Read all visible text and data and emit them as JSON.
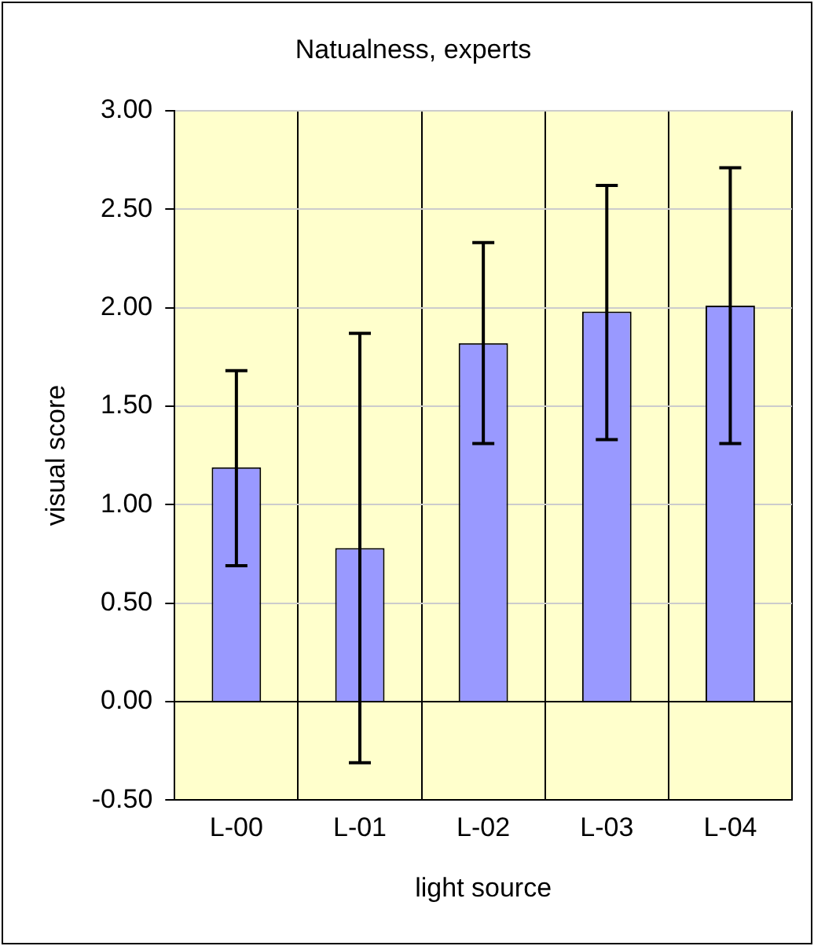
{
  "chart_data": {
    "type": "bar",
    "title": "Natualness, experts",
    "xlabel": "light source",
    "ylabel": "visual score",
    "categories": [
      "L-00",
      "L-01",
      "L-02",
      "L-03",
      "L-04"
    ],
    "series": [
      {
        "color": "#9999ff",
        "values": [
          1.19,
          0.78,
          1.82,
          1.98,
          2.01
        ],
        "errors": [
          [
            0.69,
            1.68
          ],
          [
            -0.31,
            1.87
          ],
          [
            1.31,
            2.33
          ],
          [
            1.33,
            2.62
          ],
          [
            1.31,
            2.71
          ]
        ]
      }
    ],
    "ylim": [
      -0.5,
      3
    ],
    "yticks": [
      {
        "value": -0.5,
        "label": "-0.50"
      },
      {
        "value": 0,
        "label": "0.00"
      },
      {
        "value": 0.5,
        "label": "0.50"
      },
      {
        "value": 1,
        "label": "1.00"
      },
      {
        "value": 1.5,
        "label": "1.50"
      },
      {
        "value": 2,
        "label": "2.00"
      },
      {
        "value": 2.5,
        "label": "2.50"
      },
      {
        "value": 3,
        "label": "3.00"
      }
    ],
    "grid": true,
    "legend": false
  }
}
